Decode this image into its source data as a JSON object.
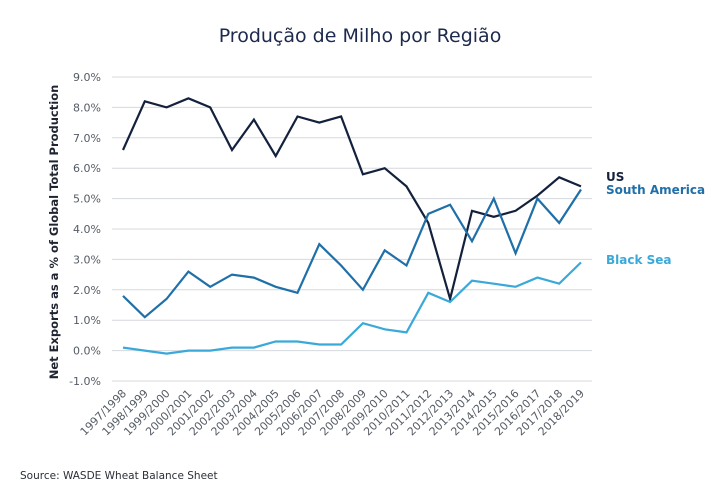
{
  "chart_data": {
    "type": "line",
    "title": "Produção de Milho por Região",
    "xlabel": "",
    "ylabel": "Net Exports as a % of Global Total Production",
    "ylim": [
      -1.0,
      9.0
    ],
    "y_ticks": [
      "-1.0%",
      "0.0%",
      "1.0%",
      "2.0%",
      "3.0%",
      "4.0%",
      "5.0%",
      "6.0%",
      "7.0%",
      "8.0%",
      "9.0%"
    ],
    "grid": true,
    "legend": "right (inline labels at line ends)",
    "categories": [
      "1997/1998",
      "1998/1999",
      "1999/2000",
      "2000/2001",
      "2001/2002",
      "2002/2003",
      "2003/2004",
      "2004/2005",
      "2005/2006",
      "2006/2007",
      "2007/2008",
      "2008/2009",
      "2009/2010",
      "2010/2011",
      "2011/2012",
      "2012/2013",
      "2013/2014",
      "2014/2015",
      "2015/2016",
      "2016/2017",
      "2017/2018",
      "2018/2019"
    ],
    "series": [
      {
        "name": "US",
        "color": "#14213d",
        "values": [
          6.6,
          8.2,
          8.0,
          8.3,
          8.0,
          6.6,
          7.6,
          6.4,
          7.7,
          7.5,
          7.7,
          5.8,
          6.0,
          5.4,
          4.2,
          1.7,
          4.6,
          4.4,
          4.6,
          5.1,
          5.7,
          5.4
        ]
      },
      {
        "name": "South America",
        "color": "#1f6fa8",
        "values": [
          1.8,
          1.1,
          1.7,
          2.6,
          2.1,
          2.5,
          2.4,
          2.1,
          1.9,
          3.5,
          2.8,
          2.0,
          3.3,
          2.8,
          4.5,
          4.8,
          3.6,
          5.0,
          3.2,
          5.0,
          4.2,
          5.3
        ]
      },
      {
        "name": "Black Sea",
        "color": "#3aa9d9",
        "values": [
          0.1,
          0.0,
          -0.1,
          0.0,
          0.0,
          0.1,
          0.1,
          0.3,
          0.3,
          0.2,
          0.2,
          0.9,
          0.7,
          0.6,
          1.9,
          1.6,
          2.3,
          2.2,
          2.1,
          2.4,
          2.2,
          2.9
        ]
      }
    ],
    "source": "Source: WASDE Wheat Balance Sheet"
  }
}
